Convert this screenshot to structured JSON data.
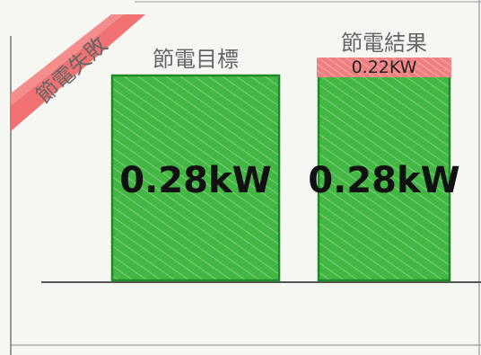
{
  "chart_data": {
    "type": "bar",
    "title": "",
    "corner_label": "節電失敗",
    "categories": [
      "節電目標",
      "節電結果"
    ],
    "series": [
      {
        "values": [
          0.28,
          0.28
        ],
        "labels": [
          "0.28kW",
          "0.28kW"
        ]
      }
    ],
    "overlay": {
      "category": "節電結果",
      "value": 0.22,
      "label": "0.22KW"
    },
    "ylim": [
      0,
      0.3
    ],
    "grid": false,
    "legend": "none",
    "colors": {
      "bar": "#3fb33f",
      "bar_dark": "#1f8a2a",
      "overlay": "#f07a7a",
      "corner": "#f06464"
    }
  }
}
